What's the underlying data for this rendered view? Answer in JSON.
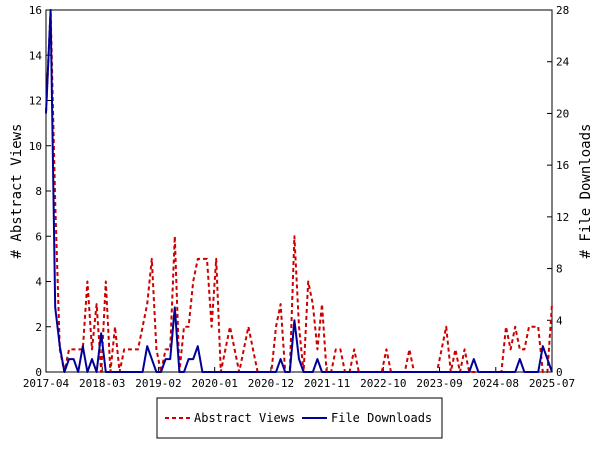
{
  "chart_data": {
    "type": "line",
    "x_labels": [
      "2017-04",
      "2018-03",
      "2019-02",
      "2020-01",
      "2020-12",
      "2021-11",
      "2022-10",
      "2023-09",
      "2024-08",
      "2025-07"
    ],
    "y_left": {
      "label": "# Abstract Views",
      "range": [
        0,
        16
      ],
      "ticks": [
        "0",
        "2",
        "4",
        "6",
        "8",
        "10",
        "12",
        "14",
        "16"
      ]
    },
    "y_right": {
      "label": "# File Downloads",
      "range": [
        0,
        28
      ],
      "ticks": [
        "0",
        "4",
        "8",
        "12",
        "16",
        "20",
        "24",
        "28"
      ]
    },
    "series": [
      {
        "name": "Abstract Views",
        "color": "#cc0000",
        "style": "dashed",
        "axis": "left",
        "values": [
          11.5,
          16,
          7.5,
          1,
          0,
          1,
          1,
          1,
          1,
          4,
          1,
          3,
          0,
          4,
          0,
          2,
          0,
          1,
          1,
          1,
          1,
          2,
          3,
          5,
          1,
          0,
          1,
          1,
          6,
          0,
          2,
          2,
          4,
          5,
          5,
          5,
          2,
          5,
          0,
          1,
          2,
          1,
          0,
          1,
          2,
          1,
          0,
          0,
          0,
          0,
          2,
          3,
          0,
          0,
          6,
          2,
          0,
          4,
          3,
          1,
          3,
          0,
          0,
          1,
          1,
          0,
          0,
          1,
          0,
          0,
          0,
          0,
          0,
          0,
          1,
          0,
          0,
          0,
          0,
          1,
          0,
          0,
          0,
          0,
          0,
          0,
          1,
          2,
          0,
          1,
          0,
          1,
          0,
          0,
          0,
          0,
          0,
          0,
          0,
          0,
          2,
          1,
          2,
          1,
          1,
          2,
          2,
          2,
          0,
          0,
          3
        ]
      },
      {
        "name": "File Downloads",
        "color": "#000099",
        "style": "solid",
        "axis": "right",
        "values": [
          20,
          28,
          5,
          2,
          0,
          1,
          1,
          0,
          2,
          0,
          1,
          0,
          3,
          0,
          0,
          0,
          0,
          0,
          0,
          0,
          0,
          0,
          2,
          1,
          0,
          0,
          1,
          1,
          5,
          0,
          0,
          1,
          1,
          2,
          0,
          0,
          0,
          0,
          0,
          0,
          0,
          0,
          0,
          0,
          0,
          0,
          0,
          0,
          0,
          0,
          0,
          1,
          0,
          0,
          4,
          1,
          0,
          0,
          0,
          1,
          0,
          0,
          0,
          0,
          0,
          0,
          0,
          0,
          0,
          0,
          0,
          0,
          0,
          0,
          0,
          0,
          0,
          0,
          0,
          0,
          0,
          0,
          0,
          0,
          0,
          0,
          0,
          0,
          0,
          0,
          0,
          0,
          0,
          1,
          0,
          0,
          0,
          0,
          0,
          0,
          0,
          0,
          0,
          1,
          0,
          0,
          0,
          0,
          2,
          1,
          0
        ]
      }
    ]
  }
}
